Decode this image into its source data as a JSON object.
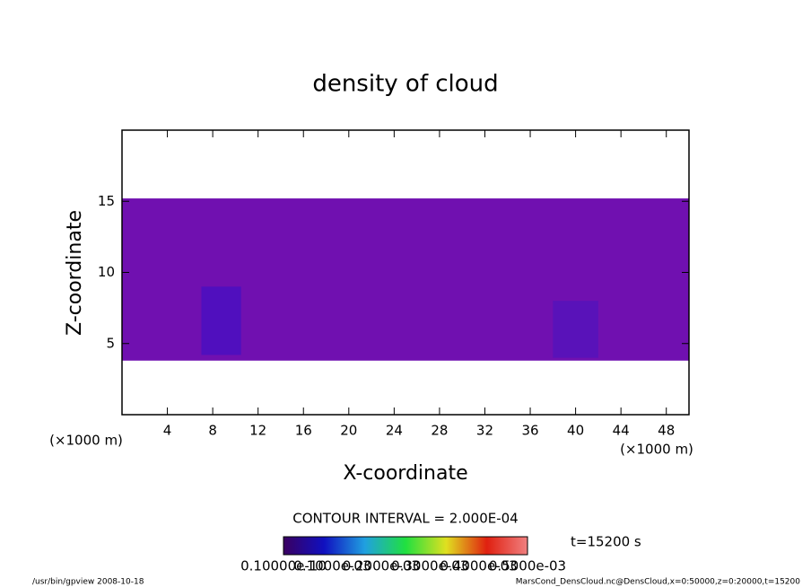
{
  "chart_data": {
    "type": "contour",
    "title": "density of cloud",
    "x_label": "X-coordinate",
    "y_label": "Z-coordinate",
    "x_unit": "(×1000 m)",
    "xlim": [
      0,
      50
    ],
    "xticks": [
      4,
      8,
      12,
      16,
      20,
      24,
      28,
      32,
      36,
      40,
      44,
      48
    ],
    "ylim": [
      0,
      20
    ],
    "yticks": [
      5,
      10,
      15
    ],
    "layers": [
      {
        "x": [
          0,
          50
        ],
        "z": [
          3.8,
          15.2
        ],
        "color": "#7010b0"
      },
      {
        "x": [
          7,
          10.5
        ],
        "z": [
          4.2,
          9
        ],
        "color": "#3a0fc8"
      },
      {
        "x": [
          38,
          42
        ],
        "z": [
          4,
          8
        ],
        "color": "#4a14c0"
      }
    ],
    "contour_interval": "CONTOUR INTERVAL = 2.000E-04",
    "time_label": "t=15200 s",
    "colorbar": {
      "colors": [
        "#3a0060",
        "#1010c0",
        "#20a0e0",
        "#20e040",
        "#e0e020",
        "#e02010",
        "#f08080"
      ],
      "labels": [
        "0.10000e-10",
        "0.1000e-03",
        "0.2000e-03",
        "0.3000e-03",
        "0.4000e-03",
        "0.5000e-03"
      ]
    },
    "footer_left": "/usr/bin/gpview   2008-10-18",
    "footer_right": "MarsCond_DensCloud.nc@DensCloud,x=0:50000,z=0:20000,t=15200"
  }
}
